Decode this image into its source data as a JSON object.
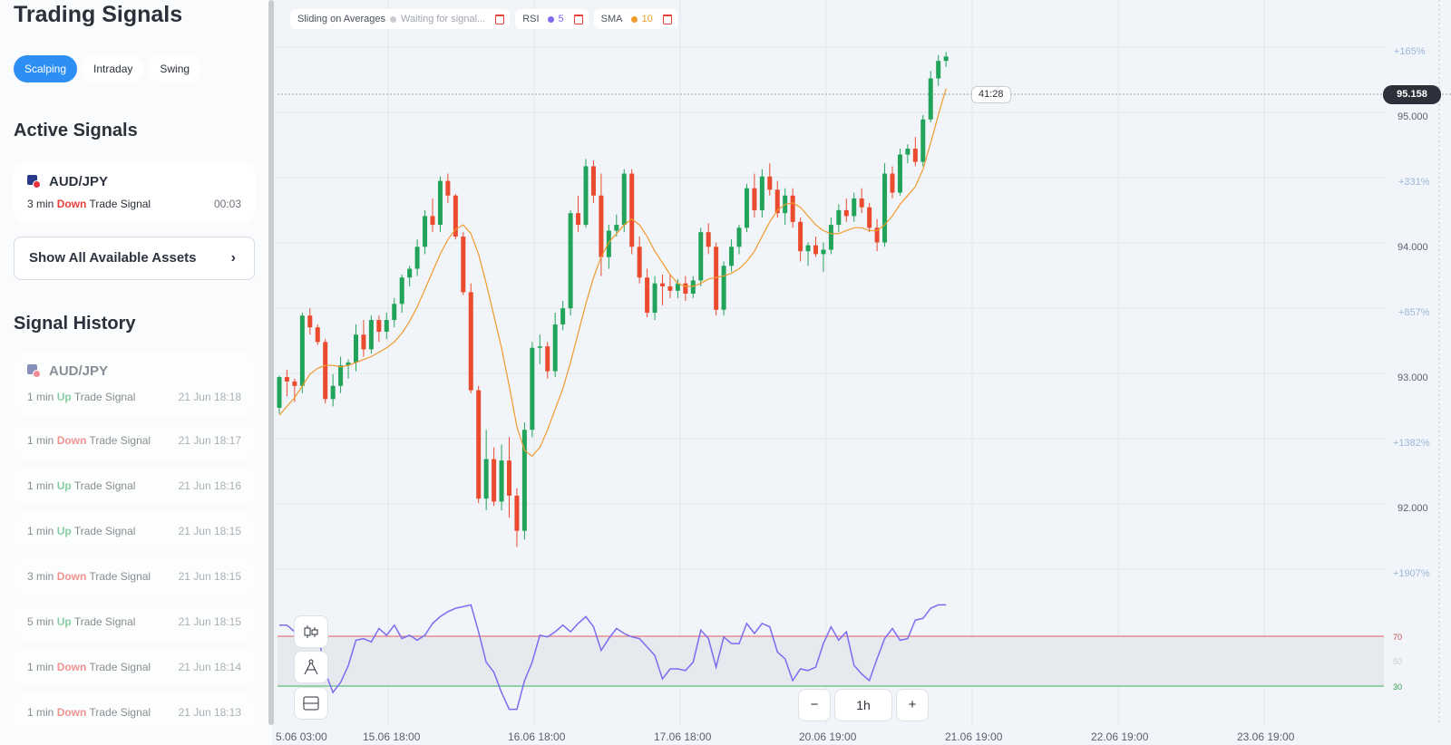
{
  "sidebar": {
    "title": "Trading Signals",
    "tabs": [
      {
        "label": "Scalping",
        "active": true
      },
      {
        "label": "Intraday",
        "active": false
      },
      {
        "label": "Swing",
        "active": false
      }
    ],
    "active_title": "Active Signals",
    "active_signal": {
      "asset": "AUD/JPY",
      "duration": "3 min",
      "direction": "Down",
      "suffix": "Trade Signal",
      "countdown": "00:03"
    },
    "show_all_label": "Show All Available Assets",
    "history_title": "Signal History",
    "history_asset": "AUD/JPY",
    "history": [
      {
        "duration": "1 min",
        "direction": "Up",
        "suffix": "Trade Signal",
        "time": "21 Jun 18:18"
      },
      {
        "duration": "1 min",
        "direction": "Down",
        "suffix": "Trade Signal",
        "time": "21 Jun 18:17"
      },
      {
        "duration": "1 min",
        "direction": "Up",
        "suffix": "Trade Signal",
        "time": "21 Jun 18:16"
      },
      {
        "duration": "1 min",
        "direction": "Up",
        "suffix": "Trade Signal",
        "time": "21 Jun 18:15"
      },
      {
        "duration": "3 min",
        "direction": "Down",
        "suffix": "Trade Signal",
        "time": "21 Jun 18:15"
      },
      {
        "duration": "5 min",
        "direction": "Up",
        "suffix": "Trade Signal",
        "time": "21 Jun 18:15"
      },
      {
        "duration": "1 min",
        "direction": "Down",
        "suffix": "Trade Signal",
        "time": "21 Jun 18:14"
      },
      {
        "duration": "1 min",
        "direction": "Down",
        "suffix": "Trade Signal",
        "time": "21 Jun 18:13"
      }
    ]
  },
  "indicators": [
    {
      "name": "Sliding on Averages",
      "value": "Waiting for signal...",
      "color": "#c9ccd1"
    },
    {
      "name": "RSI",
      "value": "5",
      "color": "#7b6cf0"
    },
    {
      "name": "SMA",
      "value": "10",
      "color": "#f09a2e"
    }
  ],
  "chart": {
    "current_price": "95.158",
    "candle_timer": "41:28",
    "timeframe": "1h",
    "zoom_out": "−",
    "zoom_in": "+",
    "price_labels": [
      "+165%",
      "95.000",
      "+331%",
      "94.000",
      "+857%",
      "93.000",
      "+1382%",
      "92.000",
      "+1907%"
    ],
    "rsi_levels": [
      "70",
      "50",
      "30"
    ],
    "x_labels": [
      "5.06 03:00",
      "15.06 18:00",
      "16.06 18:00",
      "17.06 18:00",
      "20.06 19:00",
      "21.06 19:00",
      "22.06 19:00",
      "23.06 19:00"
    ],
    "colors": {
      "up": "#22a35a",
      "down": "#ea4a2e",
      "sma": "#f09a2e",
      "rsi": "#7b6cf0"
    }
  },
  "chart_data": {
    "type": "candlestick",
    "ylim": [
      91.65,
      95.55
    ],
    "rsi_ylim": [
      20,
      90
    ],
    "candles": [
      [
        92.95,
        93.17,
        92.91,
        93.16
      ],
      [
        93.16,
        93.21,
        93.03,
        93.13
      ],
      [
        93.13,
        93.15,
        92.99,
        93.1
      ],
      [
        93.1,
        93.6,
        93.05,
        93.58
      ],
      [
        93.58,
        93.63,
        93.45,
        93.5
      ],
      [
        93.5,
        93.52,
        93.38,
        93.4
      ],
      [
        93.4,
        93.42,
        92.98,
        93.01
      ],
      [
        93.01,
        93.18,
        92.96,
        93.1
      ],
      [
        93.1,
        93.3,
        93.05,
        93.24
      ],
      [
        93.24,
        93.28,
        93.15,
        93.26
      ],
      [
        93.26,
        93.52,
        93.2,
        93.45
      ],
      [
        93.45,
        93.55,
        93.3,
        93.35
      ],
      [
        93.35,
        93.58,
        93.32,
        93.55
      ],
      [
        93.55,
        93.58,
        93.4,
        93.47
      ],
      [
        93.47,
        93.6,
        93.42,
        93.55
      ],
      [
        93.55,
        93.7,
        93.5,
        93.66
      ],
      [
        93.66,
        93.86,
        93.6,
        93.84
      ],
      [
        93.84,
        93.92,
        93.78,
        93.9
      ],
      [
        93.9,
        94.1,
        93.85,
        94.05
      ],
      [
        94.05,
        94.3,
        94.0,
        94.26
      ],
      [
        94.26,
        94.38,
        94.15,
        94.2
      ],
      [
        94.2,
        94.53,
        94.15,
        94.5
      ],
      [
        94.5,
        94.55,
        94.35,
        94.4
      ],
      [
        94.4,
        94.41,
        94.1,
        94.12
      ],
      [
        94.12,
        94.15,
        93.72,
        93.74
      ],
      [
        93.74,
        93.8,
        93.05,
        93.07
      ],
      [
        93.07,
        93.1,
        92.3,
        92.33
      ],
      [
        92.33,
        92.8,
        92.25,
        92.6
      ],
      [
        92.6,
        92.68,
        92.28,
        92.31
      ],
      [
        92.31,
        92.7,
        92.25,
        92.59
      ],
      [
        92.59,
        92.75,
        92.2,
        92.35
      ],
      [
        92.35,
        92.4,
        92.0,
        92.11
      ],
      [
        92.11,
        92.85,
        92.05,
        92.8
      ],
      [
        92.8,
        93.4,
        92.75,
        93.36
      ],
      [
        93.36,
        93.45,
        93.25,
        93.37
      ],
      [
        93.37,
        93.4,
        93.15,
        93.2
      ],
      [
        93.2,
        93.6,
        93.16,
        93.52
      ],
      [
        93.52,
        93.68,
        93.48,
        93.63
      ],
      [
        93.63,
        94.3,
        93.58,
        94.28
      ],
      [
        94.28,
        94.4,
        94.15,
        94.2
      ],
      [
        94.2,
        94.65,
        94.18,
        94.6
      ],
      [
        94.6,
        94.64,
        94.35,
        94.4
      ],
      [
        94.4,
        94.55,
        93.85,
        93.98
      ],
      [
        93.98,
        94.2,
        93.9,
        94.16
      ],
      [
        94.16,
        94.27,
        94.12,
        94.2
      ],
      [
        94.2,
        94.58,
        94.15,
        94.55
      ],
      [
        94.55,
        94.58,
        94.0,
        94.05
      ],
      [
        94.05,
        94.12,
        93.8,
        93.84
      ],
      [
        93.84,
        93.9,
        93.57,
        93.6
      ],
      [
        93.6,
        93.85,
        93.55,
        93.8
      ],
      [
        93.8,
        93.86,
        93.65,
        93.78
      ],
      [
        93.78,
        93.86,
        93.7,
        93.75
      ],
      [
        93.75,
        93.83,
        93.7,
        93.8
      ],
      [
        93.8,
        93.85,
        93.68,
        93.73
      ],
      [
        93.73,
        93.85,
        93.7,
        93.82
      ],
      [
        93.82,
        94.18,
        93.78,
        94.15
      ],
      [
        94.15,
        94.21,
        94.0,
        94.05
      ],
      [
        94.05,
        94.08,
        93.58,
        93.62
      ],
      [
        93.62,
        93.95,
        93.58,
        93.92
      ],
      [
        93.92,
        94.1,
        93.88,
        94.05
      ],
      [
        94.05,
        94.2,
        94.0,
        94.18
      ],
      [
        94.18,
        94.48,
        94.15,
        94.45
      ],
      [
        94.45,
        94.55,
        94.25,
        94.3
      ],
      [
        94.3,
        94.58,
        94.25,
        94.53
      ],
      [
        94.53,
        94.62,
        94.4,
        94.44
      ],
      [
        94.44,
        94.5,
        94.25,
        94.28
      ],
      [
        94.28,
        94.45,
        94.2,
        94.4
      ],
      [
        94.4,
        94.45,
        94.18,
        94.22
      ],
      [
        94.22,
        94.25,
        93.95,
        94.02
      ],
      [
        94.02,
        94.08,
        93.92,
        94.06
      ],
      [
        94.06,
        94.12,
        93.98,
        94.0
      ],
      [
        94.0,
        94.08,
        93.88,
        94.03
      ],
      [
        94.03,
        94.25,
        94.0,
        94.2
      ],
      [
        94.2,
        94.34,
        94.15,
        94.3
      ],
      [
        94.3,
        94.38,
        94.22,
        94.26
      ],
      [
        94.26,
        94.42,
        94.22,
        94.38
      ],
      [
        94.38,
        94.45,
        94.28,
        94.32
      ],
      [
        94.32,
        94.35,
        94.15,
        94.18
      ],
      [
        94.18,
        94.24,
        94.02,
        94.08
      ],
      [
        94.08,
        94.62,
        94.05,
        94.55
      ],
      [
        94.55,
        94.6,
        94.38,
        94.42
      ],
      [
        94.42,
        94.72,
        94.4,
        94.68
      ],
      [
        94.68,
        94.75,
        94.62,
        94.72
      ],
      [
        94.72,
        94.8,
        94.6,
        94.63
      ],
      [
        94.63,
        94.95,
        94.6,
        94.92
      ],
      [
        94.92,
        95.25,
        94.9,
        95.2
      ],
      [
        95.2,
        95.36,
        95.15,
        95.32
      ],
      [
        95.32,
        95.38,
        95.28,
        95.35
      ]
    ],
    "sma": [
      92.9,
      92.96,
      93.02,
      93.1,
      93.18,
      93.22,
      93.24,
      93.24,
      93.23,
      93.24,
      93.26,
      93.28,
      93.3,
      93.33,
      93.36,
      93.4,
      93.46,
      93.54,
      93.64,
      93.76,
      93.88,
      94.0,
      94.1,
      94.17,
      94.2,
      94.14,
      94.0,
      93.8,
      93.58,
      93.36,
      93.1,
      92.82,
      92.66,
      92.62,
      92.68,
      92.8,
      92.94,
      93.08,
      93.26,
      93.46,
      93.66,
      93.84,
      93.98,
      94.08,
      94.14,
      94.2,
      94.24,
      94.2,
      94.12,
      94.02,
      93.94,
      93.86,
      93.8,
      93.78,
      93.78,
      93.8,
      93.83,
      93.84,
      93.85,
      93.87,
      93.9,
      93.95,
      94.02,
      94.12,
      94.22,
      94.3,
      94.34,
      94.35,
      94.32,
      94.26,
      94.2,
      94.16,
      94.14,
      94.14,
      94.16,
      94.18,
      94.18,
      94.16,
      94.16,
      94.2,
      94.26,
      94.34,
      94.4,
      94.46,
      94.58,
      94.76,
      94.95,
      95.13
    ],
    "rsi": [
      74,
      74,
      70,
      72,
      75,
      70,
      46,
      34,
      40,
      50,
      65,
      66,
      64,
      72,
      68,
      74,
      66,
      68,
      65,
      68,
      75,
      79,
      82,
      84,
      85,
      86,
      70,
      52,
      46,
      34,
      24,
      24,
      41,
      52,
      68,
      67,
      70,
      74,
      70,
      75,
      79,
      73,
      59,
      66,
      72,
      69,
      67,
      66,
      61,
      56,
      42,
      48,
      48,
      47,
      52,
      71,
      66,
      49,
      67,
      63,
      63,
      75,
      69,
      75,
      73,
      58,
      54,
      41,
      48,
      47,
      49,
      63,
      73,
      65,
      70,
      50,
      45,
      41,
      54,
      66,
      72,
      65,
      66,
      77,
      78,
      84,
      86,
      86
    ]
  }
}
